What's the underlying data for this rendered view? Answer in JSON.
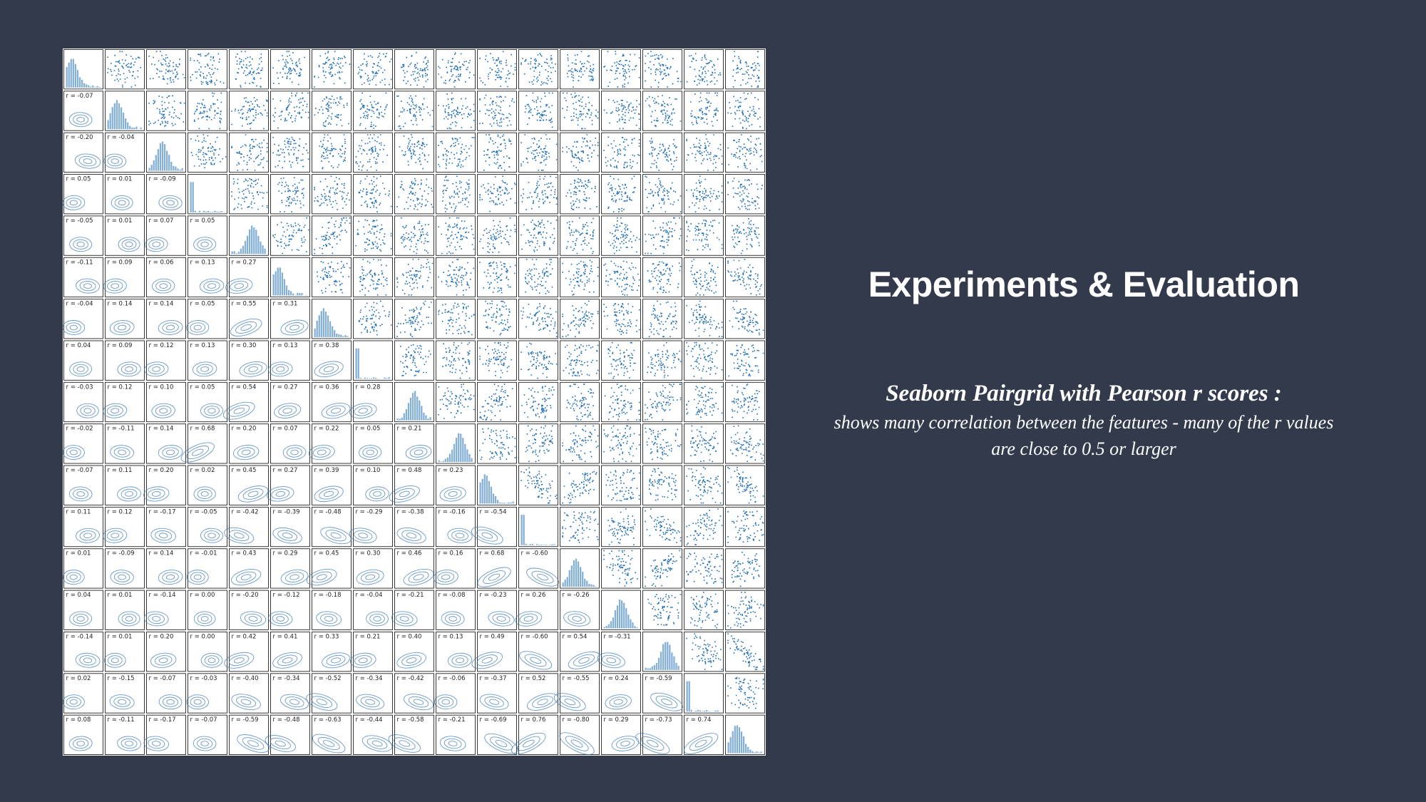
{
  "slide": {
    "title": "Experiments & Evaluation",
    "caption_heading": "Seaborn Pairgrid with Pearson r scores :",
    "caption_body": "shows many correlation between the features - many of the r values are close to 0.5 or larger"
  },
  "colors": {
    "background": "#323a4c",
    "points": "#1f6db4",
    "contour": "#3a78b8",
    "text": "#ffffff"
  },
  "chart_data": {
    "type": "scatter",
    "grid_size": 17,
    "upper_triangle": "scatter",
    "diagonal": "histogram",
    "lower_triangle": "kde contour with Pearson r label",
    "r_label_prefix": "r = ",
    "pearson_r": [
      [
        -0.07
      ],
      [
        -0.2,
        -0.04
      ],
      [
        0.05,
        0.01,
        -0.09
      ],
      [
        -0.05,
        0.01,
        0.07,
        0.05
      ],
      [
        -0.11,
        0.09,
        0.06,
        0.13,
        0.27
      ],
      [
        -0.04,
        0.14,
        0.14,
        0.05,
        0.55,
        0.31
      ],
      [
        0.04,
        0.09,
        0.12,
        0.13,
        0.3,
        0.13,
        0.38
      ],
      [
        -0.03,
        0.12,
        0.1,
        0.05,
        0.54,
        0.27,
        0.36,
        0.28
      ],
      [
        -0.02,
        -0.11,
        0.14,
        0.68,
        0.2,
        0.07,
        0.22,
        0.05,
        0.21
      ],
      [
        -0.07,
        0.11,
        0.2,
        0.02,
        0.45,
        0.27,
        0.39,
        0.1,
        0.48,
        0.23
      ],
      [
        0.11,
        0.12,
        -0.17,
        -0.05,
        -0.42,
        -0.39,
        -0.48,
        -0.29,
        -0.38,
        -0.16,
        -0.54
      ],
      [
        0.01,
        -0.09,
        0.14,
        -0.01,
        0.43,
        0.29,
        0.45,
        0.3,
        0.46,
        0.16,
        0.68,
        -0.6
      ],
      [
        0.04,
        0.01,
        -0.14,
        0.0,
        -0.2,
        -0.12,
        -0.18,
        -0.04,
        -0.21,
        -0.08,
        -0.23,
        0.26,
        -0.26
      ],
      [
        -0.14,
        0.01,
        0.2,
        -0.0,
        0.42,
        0.41,
        0.33,
        0.21,
        0.4,
        0.13,
        0.49,
        -0.6,
        0.54,
        -0.31
      ],
      [
        0.02,
        -0.15,
        -0.07,
        -0.03,
        -0.4,
        -0.34,
        -0.52,
        -0.34,
        -0.42,
        -0.06,
        -0.37,
        0.52,
        -0.55,
        0.24,
        -0.59
      ],
      [
        0.08,
        -0.11,
        -0.17,
        -0.07,
        -0.59,
        -0.48,
        -0.63,
        -0.44,
        -0.58,
        -0.21,
        -0.69,
        0.76,
        -0.8,
        0.29,
        -0.73,
        0.74
      ]
    ]
  }
}
